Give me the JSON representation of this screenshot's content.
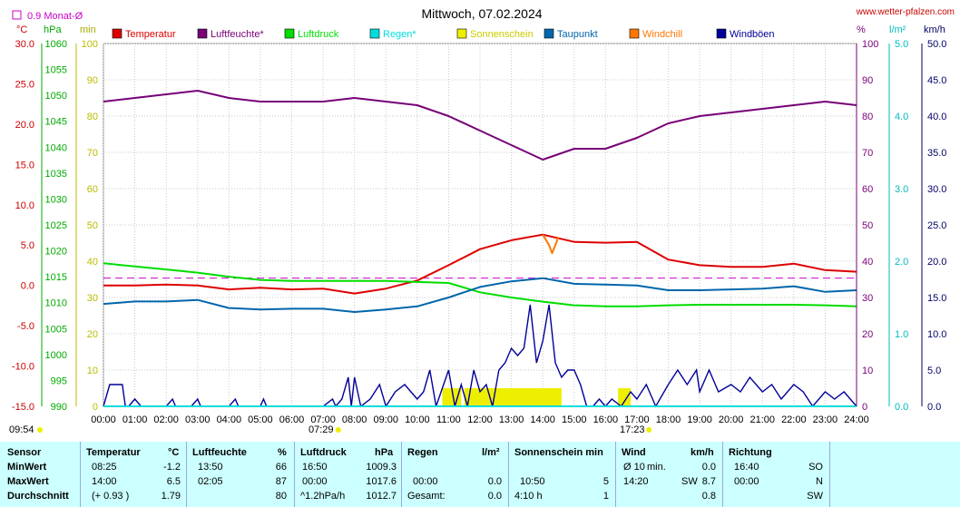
{
  "header": {
    "title": "Mittwoch, 07.02.2024",
    "site": "www.wetter-pfalzen.com",
    "monthly_avg": "0.9 Monat-Ø",
    "unit_celsius": "°C",
    "unit_hpa": "hPa",
    "unit_min": "min",
    "unit_percent": "%",
    "unit_lm2": "l/m²",
    "unit_kmh": "km/h"
  },
  "colors": {
    "temperatur": "#dd0000",
    "luftfeuchte": "#770077",
    "luftdruck": "#00dd00",
    "regen": "#00dddd",
    "sonnenschein": "#eeee00",
    "taupunkt": "#0066aa",
    "windchill": "#ff7700",
    "windboeen": "#000099",
    "monthly_avg": "#cc00cc",
    "stats_bg": "#ccffff"
  },
  "chart_data": {
    "type": "line",
    "title": "Mittwoch, 07.02.2024",
    "legend": [
      "Temperatur",
      "Luftfeuchte*",
      "Luftdruck",
      "Regen*",
      "Sonnenschein",
      "Taupunkt",
      "Windchill",
      "Windböen"
    ],
    "legend_position": "top",
    "x_ticks": [
      "00:00",
      "01:00",
      "02:00",
      "03:00",
      "04:00",
      "05:00",
      "06:00",
      "07:00",
      "08:00",
      "09:00",
      "10:00",
      "11:00",
      "12:00",
      "13:00",
      "14:00",
      "15:00",
      "16:00",
      "17:00",
      "18:00",
      "19:00",
      "20:00",
      "21:00",
      "22:00",
      "23:00",
      "24:00"
    ],
    "xlim": [
      0,
      24
    ],
    "sunrise": "07:29",
    "sunset": "17:23",
    "last_update": "09:54",
    "axes": {
      "temperature": {
        "unit": "°C",
        "range": [
          -15,
          30
        ],
        "ticks": [
          "30.0",
          "25.0",
          "20.0",
          "15.0",
          "10.0",
          "5.0",
          "0.0",
          "-5.0",
          "-10.0",
          "-15.0"
        ]
      },
      "pressure": {
        "unit": "hPa",
        "range": [
          990,
          1060
        ],
        "ticks": [
          "1060",
          "1055",
          "1050",
          "1045",
          "1040",
          "1035",
          "1030",
          "1025",
          "1020",
          "1015",
          "1010",
          "1005",
          "1000",
          "995",
          "990"
        ]
      },
      "sunshine_min": {
        "unit": "min",
        "range": [
          0,
          100
        ],
        "ticks": [
          "100",
          "90",
          "80",
          "70",
          "60",
          "50",
          "40",
          "30",
          "20",
          "10",
          "0"
        ]
      },
      "humidity": {
        "unit": "%",
        "range": [
          0,
          100
        ],
        "ticks": [
          "100",
          "90",
          "80",
          "70",
          "60",
          "50",
          "40",
          "30",
          "20",
          "10",
          "0"
        ]
      },
      "rain": {
        "unit": "l/m²",
        "range": [
          0,
          5
        ],
        "ticks": [
          "5.0",
          "4.0",
          "3.0",
          "2.0",
          "1.0",
          "0.0"
        ]
      },
      "wind": {
        "unit": "km/h",
        "range": [
          0,
          50
        ],
        "ticks": [
          "50.0",
          "45.0",
          "40.0",
          "35.0",
          "30.0",
          "25.0",
          "20.0",
          "15.0",
          "10.0",
          "5.0",
          "0.0"
        ]
      }
    },
    "monthly_avg_temperature": 0.9,
    "series": [
      {
        "name": "Luftfeuchte*",
        "axis": "humidity",
        "x": [
          0,
          1,
          2,
          3,
          4,
          5,
          6,
          7,
          8,
          9,
          10,
          11,
          12,
          13,
          14,
          15,
          16,
          17,
          18,
          19,
          20,
          21,
          22,
          23,
          24
        ],
        "values": [
          84,
          85,
          86,
          87,
          85,
          84,
          84,
          84,
          85,
          84,
          83,
          80,
          76,
          72,
          68,
          71,
          71,
          74,
          78,
          80,
          81,
          82,
          83,
          84,
          83
        ]
      },
      {
        "name": "Temperatur",
        "axis": "temperature",
        "x": [
          0,
          1,
          2,
          3,
          4,
          5,
          6,
          7,
          8,
          9,
          10,
          11,
          12,
          13,
          14,
          15,
          16,
          17,
          18,
          19,
          20,
          21,
          22,
          23,
          24
        ],
        "values": [
          0.0,
          0.0,
          0.1,
          0.0,
          -0.5,
          -0.3,
          -0.5,
          -0.4,
          -1.0,
          -0.4,
          0.6,
          2.5,
          4.5,
          5.6,
          6.3,
          5.4,
          5.3,
          5.4,
          3.2,
          2.5,
          2.3,
          2.3,
          2.7,
          1.9,
          1.7
        ]
      },
      {
        "name": "Windchill",
        "axis": "temperature",
        "x": [
          14.0,
          14.2,
          14.3,
          14.4,
          14.5
        ],
        "values": [
          6.3,
          5.0,
          4.0,
          5.0,
          6.0
        ]
      },
      {
        "name": "Luftdruck",
        "axis": "pressure",
        "x": [
          0,
          1,
          2,
          3,
          4,
          5,
          6,
          7,
          8,
          9,
          10,
          11,
          12,
          13,
          14,
          15,
          16,
          17,
          18,
          19,
          20,
          21,
          22,
          23,
          24
        ],
        "values": [
          1017.6,
          1017.0,
          1016.4,
          1015.8,
          1015.0,
          1014.4,
          1014.2,
          1014.2,
          1014.2,
          1014.2,
          1014.0,
          1013.8,
          1012.0,
          1011.0,
          1010.2,
          1009.5,
          1009.3,
          1009.3,
          1009.5,
          1009.6,
          1009.6,
          1009.6,
          1009.6,
          1009.5,
          1009.3
        ]
      },
      {
        "name": "Taupunkt",
        "axis": "temperature",
        "x": [
          0,
          1,
          2,
          3,
          4,
          5,
          6,
          7,
          8,
          9,
          10,
          11,
          12,
          13,
          14,
          15,
          16,
          17,
          18,
          19,
          20,
          21,
          22,
          23,
          24
        ],
        "values": [
          -2.3,
          -2.0,
          -2.0,
          -1.8,
          -2.8,
          -3.0,
          -2.9,
          -2.9,
          -3.3,
          -3.0,
          -2.6,
          -1.5,
          -0.2,
          0.5,
          0.9,
          0.2,
          0.1,
          0.0,
          -0.6,
          -0.6,
          -0.5,
          -0.4,
          -0.1,
          -0.8,
          -0.6
        ]
      },
      {
        "name": "Windböen",
        "axis": "wind",
        "x": [
          0,
          0.2,
          0.3,
          0.6,
          0.7,
          0.8,
          1.0,
          1.2,
          2.0,
          2.2,
          2.3,
          2.8,
          3.0,
          3.1,
          3.6,
          4.0,
          4.2,
          4.3,
          5.0,
          5.1,
          5.2,
          6.0,
          7.0,
          7.3,
          7.4,
          7.6,
          7.8,
          7.9,
          8.0,
          8.2,
          8.5,
          8.8,
          9.0,
          9.3,
          9.6,
          10.0,
          10.2,
          10.4,
          10.6,
          11.0,
          11.2,
          11.4,
          11.6,
          11.8,
          12.0,
          12.2,
          12.4,
          12.6,
          12.8,
          13.0,
          13.2,
          13.4,
          13.6,
          13.8,
          14.0,
          14.2,
          14.4,
          14.6,
          14.8,
          15.0,
          15.2,
          15.4,
          15.6,
          15.8,
          16.0,
          16.2,
          16.5,
          16.8,
          17.0,
          17.3,
          17.6,
          18.0,
          18.3,
          18.6,
          18.9,
          19.0,
          19.3,
          19.6,
          20.0,
          20.3,
          20.6,
          21.0,
          21.3,
          21.6,
          22.0,
          22.3,
          22.6,
          23.0,
          23.3,
          23.6,
          24.0
        ],
        "values": [
          0,
          3,
          3,
          3,
          0,
          0,
          1,
          0,
          0,
          1,
          0,
          0,
          1,
          0,
          0,
          0,
          1,
          0,
          0,
          1,
          0,
          0,
          0,
          1,
          0,
          1,
          4,
          0,
          4,
          0,
          1,
          3,
          0,
          2,
          3,
          1,
          2,
          5,
          0,
          5,
          0,
          3,
          0,
          5,
          2,
          3,
          0,
          5,
          6,
          8,
          7,
          8,
          14,
          6,
          9,
          14,
          6,
          4,
          5,
          5,
          3,
          0,
          0,
          1,
          0,
          1,
          0,
          2,
          1,
          3,
          0,
          3,
          5,
          3,
          5,
          2,
          5,
          2,
          3,
          2,
          4,
          2,
          3,
          1,
          3,
          2,
          0,
          2,
          1,
          2,
          0
        ]
      },
      {
        "name": "Sonnenschein",
        "axis": "sunshine_min",
        "x": [
          10.8,
          11.4,
          11.5,
          14.6,
          16.4,
          16.8
        ],
        "values": [
          5,
          5,
          5,
          5,
          5,
          5
        ]
      },
      {
        "name": "Regen*",
        "axis": "rain",
        "x": [
          0,
          24
        ],
        "values": [
          0,
          0
        ]
      }
    ]
  },
  "stats": {
    "sensor": {
      "header": "Sensor",
      "rows": [
        "MinWert",
        "MaxWert",
        "Durchschnitt"
      ]
    },
    "temperatur": {
      "header": "Temperatur",
      "unit": "°C",
      "rows": [
        [
          "08:25",
          "-1.2"
        ],
        [
          "14:00",
          "6.5"
        ],
        [
          "(+ 0.93 )",
          "1.79"
        ]
      ]
    },
    "luftfeuchte": {
      "header": "Luftfeuchte",
      "unit": "%",
      "rows": [
        [
          "13:50",
          "66"
        ],
        [
          "02:05",
          "87"
        ],
        [
          "",
          "80"
        ]
      ]
    },
    "luftdruck": {
      "header": "Luftdruck",
      "unit": "hPa",
      "rows": [
        [
          "16:50",
          "1009.3"
        ],
        [
          "00:00",
          "1017.6"
        ],
        [
          "^1.2hPa/h",
          "1012.7"
        ]
      ]
    },
    "regen": {
      "header": "Regen",
      "unit": "l/m²",
      "rows": [
        [
          "",
          ""
        ],
        [
          "00:00",
          "0.0"
        ],
        [
          "Gesamt:",
          "0.0"
        ]
      ]
    },
    "sonnenschein": {
      "header": "Sonnenschein min",
      "rows": [
        [
          "",
          ""
        ],
        [
          "10:50",
          "5"
        ],
        [
          "4:10 h",
          "1"
        ]
      ]
    },
    "wind": {
      "header": "Wind",
      "unit": "km/h",
      "rows": [
        [
          "Ø 10",
          "min.",
          "0.0"
        ],
        [
          "14:20",
          "SW",
          "8.7"
        ],
        [
          "",
          "",
          "0.8"
        ]
      ]
    },
    "richtung": {
      "header": "Richtung",
      "rows": [
        [
          "16:40",
          "SO"
        ],
        [
          "00:00",
          "N"
        ],
        [
          "",
          "SW"
        ]
      ]
    }
  }
}
